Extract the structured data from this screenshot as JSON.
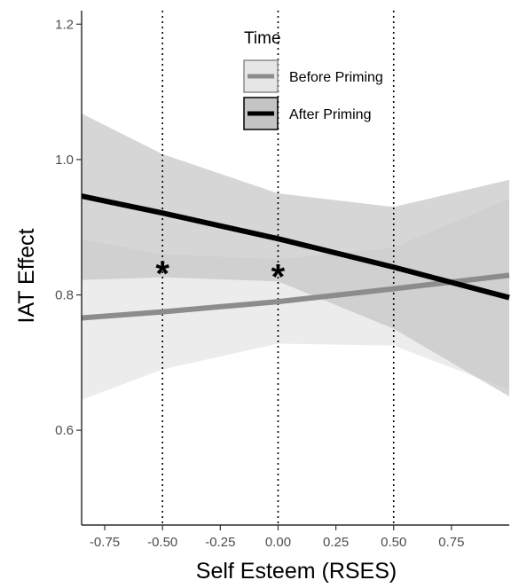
{
  "chart_data": {
    "type": "line",
    "title": "",
    "xlabel": "Self Esteem (RSES)",
    "ylabel": "IAT Effect",
    "xlim": [
      -0.85,
      1.0
    ],
    "ylim": [
      0.46,
      1.22
    ],
    "x_ticks": [
      -0.75,
      -0.5,
      -0.25,
      0.0,
      0.25,
      0.5,
      0.75
    ],
    "x_tick_labels": [
      "-0.75",
      "-0.50",
      "-0.25",
      "0.00",
      "0.25",
      "0.50",
      "0.75"
    ],
    "y_ticks": [
      0.6,
      0.8,
      1.0,
      1.2
    ],
    "y_tick_labels": [
      "0.6",
      "0.8",
      "1.0",
      "1.2"
    ],
    "grid": false,
    "legend": {
      "title": "Time",
      "position": "top-center"
    },
    "reference_lines_x": [
      -0.5,
      0.0,
      0.5
    ],
    "series": [
      {
        "name": "Before Priming",
        "color": "#8c8c8c",
        "band_color": "#e6e6e6",
        "x": [
          -0.85,
          -0.5,
          0.0,
          0.5,
          1.0
        ],
        "y": [
          0.766,
          0.775,
          0.79,
          0.809,
          0.829
        ],
        "ci_lower": [
          0.645,
          0.69,
          0.728,
          0.725,
          0.66
        ],
        "ci_upper": [
          0.882,
          0.86,
          0.853,
          0.87,
          0.942
        ]
      },
      {
        "name": "After Priming",
        "color": "#000000",
        "band_color": "#c4c4c4",
        "x": [
          -0.85,
          -0.5,
          0.0,
          0.5,
          1.0
        ],
        "y": [
          0.946,
          0.921,
          0.883,
          0.841,
          0.796
        ],
        "ci_lower": [
          0.822,
          0.826,
          0.82,
          0.75,
          0.65
        ],
        "ci_upper": [
          1.068,
          1.008,
          0.95,
          0.93,
          0.97
        ]
      }
    ],
    "annotations": [
      {
        "text": "*",
        "x": -0.5,
        "y": 0.848
      },
      {
        "text": "*",
        "x": 0.0,
        "y": 0.843
      }
    ]
  }
}
